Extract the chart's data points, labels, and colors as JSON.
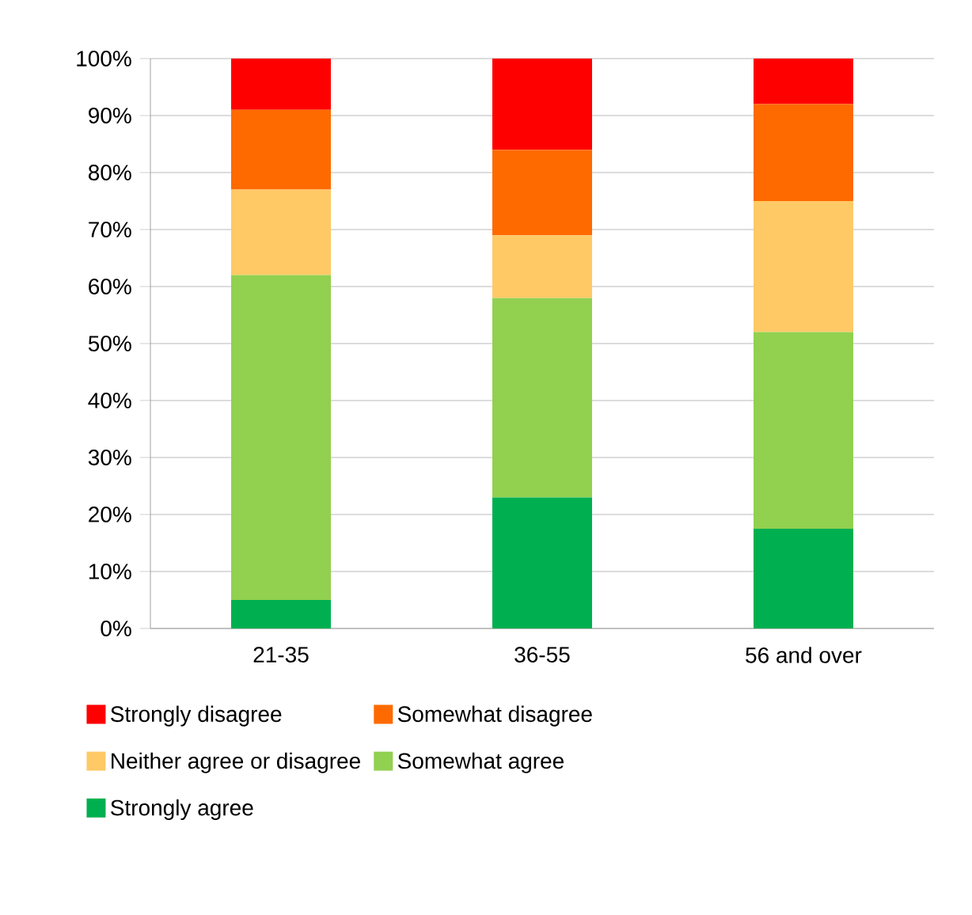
{
  "chart_data": {
    "type": "bar",
    "stacked": true,
    "categories": [
      "21-35",
      "36-55",
      "56 and over"
    ],
    "series": [
      {
        "name": "Strongly agree",
        "color": "#00b050",
        "values": [
          5,
          23,
          17.5
        ]
      },
      {
        "name": "Somewhat agree",
        "color": "#92d050",
        "values": [
          57,
          35,
          34.5
        ]
      },
      {
        "name": "Neither agree or disagree",
        "color": "#ffc966",
        "values": [
          15,
          11,
          23
        ]
      },
      {
        "name": "Somewhat disagree",
        "color": "#fe6a00",
        "values": [
          14,
          15,
          17
        ]
      },
      {
        "name": "Strongly disagree",
        "color": "#ff0000",
        "values": [
          9,
          16,
          8
        ]
      }
    ],
    "ylim": [
      0,
      100
    ],
    "yticks": [
      {
        "value": 0,
        "label": "0%"
      },
      {
        "value": 10,
        "label": "10%"
      },
      {
        "value": 20,
        "label": "20%"
      },
      {
        "value": 30,
        "label": "30%"
      },
      {
        "value": 40,
        "label": "40%"
      },
      {
        "value": 50,
        "label": "50%"
      },
      {
        "value": 60,
        "label": "60%"
      },
      {
        "value": 70,
        "label": "70%"
      },
      {
        "value": 80,
        "label": "80%"
      },
      {
        "value": 90,
        "label": "90%"
      },
      {
        "value": 100,
        "label": "100%"
      }
    ],
    "grid": "y",
    "legend": "bottom"
  }
}
